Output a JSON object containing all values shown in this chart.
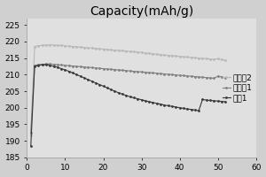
{
  "title": "Capacity(mAh/g)",
  "xlim": [
    0,
    60
  ],
  "ylim": [
    185,
    227
  ],
  "xticks": [
    0,
    10,
    20,
    30,
    40,
    50,
    60
  ],
  "yticks": [
    185,
    190,
    195,
    200,
    205,
    210,
    215,
    220,
    225
  ],
  "series": [
    {
      "label": "实施兣2",
      "color": "#b8b8b8",
      "x": [
        1,
        2,
        3,
        4,
        5,
        6,
        7,
        8,
        9,
        10,
        11,
        12,
        13,
        14,
        15,
        16,
        17,
        18,
        19,
        20,
        21,
        22,
        23,
        24,
        25,
        26,
        27,
        28,
        29,
        30,
        31,
        32,
        33,
        34,
        35,
        36,
        37,
        38,
        39,
        40,
        41,
        42,
        43,
        44,
        45,
        46,
        47,
        48,
        49,
        50,
        51,
        52
      ],
      "y": [
        191.5,
        218.5,
        218.7,
        218.8,
        218.9,
        219.0,
        218.9,
        218.8,
        218.8,
        218.7,
        218.6,
        218.5,
        218.4,
        218.3,
        218.2,
        218.1,
        218.0,
        217.9,
        217.8,
        217.7,
        217.6,
        217.5,
        217.4,
        217.3,
        217.2,
        217.1,
        217.0,
        216.9,
        216.8,
        216.7,
        216.5,
        216.4,
        216.3,
        216.1,
        216.0,
        215.9,
        215.8,
        215.7,
        215.6,
        215.5,
        215.4,
        215.3,
        215.2,
        215.1,
        215.0,
        214.9,
        214.8,
        214.7,
        214.6,
        214.8,
        214.5,
        214.3
      ]
    },
    {
      "label": "实施兣1",
      "color": "#808080",
      "x": [
        1,
        2,
        3,
        4,
        5,
        6,
        7,
        8,
        9,
        10,
        11,
        12,
        13,
        14,
        15,
        16,
        17,
        18,
        19,
        20,
        21,
        22,
        23,
        24,
        25,
        26,
        27,
        28,
        29,
        30,
        31,
        32,
        33,
        34,
        35,
        36,
        37,
        38,
        39,
        40,
        41,
        42,
        43,
        44,
        45,
        46,
        47,
        48,
        49,
        50,
        51,
        52
      ],
      "y": [
        192.5,
        212.8,
        213.0,
        213.1,
        213.2,
        213.2,
        213.1,
        213.0,
        212.9,
        212.8,
        212.7,
        212.6,
        212.5,
        212.4,
        212.3,
        212.2,
        212.1,
        212.0,
        211.9,
        211.8,
        211.7,
        211.6,
        211.5,
        211.4,
        211.3,
        211.2,
        211.1,
        211.0,
        210.9,
        210.8,
        210.7,
        210.6,
        210.5,
        210.4,
        210.3,
        210.2,
        210.1,
        210.0,
        209.9,
        209.8,
        209.7,
        209.6,
        209.5,
        209.4,
        209.3,
        209.2,
        209.1,
        209.0,
        208.9,
        209.5,
        209.3,
        209.0
      ]
    },
    {
      "label": "对比1",
      "color": "#383838",
      "x": [
        1,
        2,
        3,
        4,
        5,
        6,
        7,
        8,
        9,
        10,
        11,
        12,
        13,
        14,
        15,
        16,
        17,
        18,
        19,
        20,
        21,
        22,
        23,
        24,
        25,
        26,
        27,
        28,
        29,
        30,
        31,
        32,
        33,
        34,
        35,
        36,
        37,
        38,
        39,
        40,
        41,
        42,
        43,
        44,
        45,
        46,
        47,
        48,
        49,
        50,
        51,
        52
      ],
      "y": [
        188.5,
        212.5,
        212.8,
        213.0,
        213.0,
        212.8,
        212.5,
        212.2,
        211.8,
        211.4,
        211.0,
        210.5,
        210.0,
        209.5,
        209.0,
        208.5,
        208.0,
        207.5,
        207.0,
        206.5,
        206.0,
        205.5,
        205.0,
        204.5,
        204.1,
        203.7,
        203.3,
        203.0,
        202.7,
        202.4,
        202.1,
        201.8,
        201.6,
        201.3,
        201.1,
        200.8,
        200.6,
        200.4,
        200.2,
        200.0,
        199.8,
        199.6,
        199.5,
        199.3,
        199.1,
        202.5,
        202.3,
        202.2,
        202.1,
        202.0,
        201.9,
        201.8
      ]
    }
  ],
  "bg_color": "#d0d0d0",
  "plot_bg_color": "#e0e0e0",
  "legend_fontsize": 6.5,
  "title_fontsize": 10,
  "tick_fontsize": 6.5
}
